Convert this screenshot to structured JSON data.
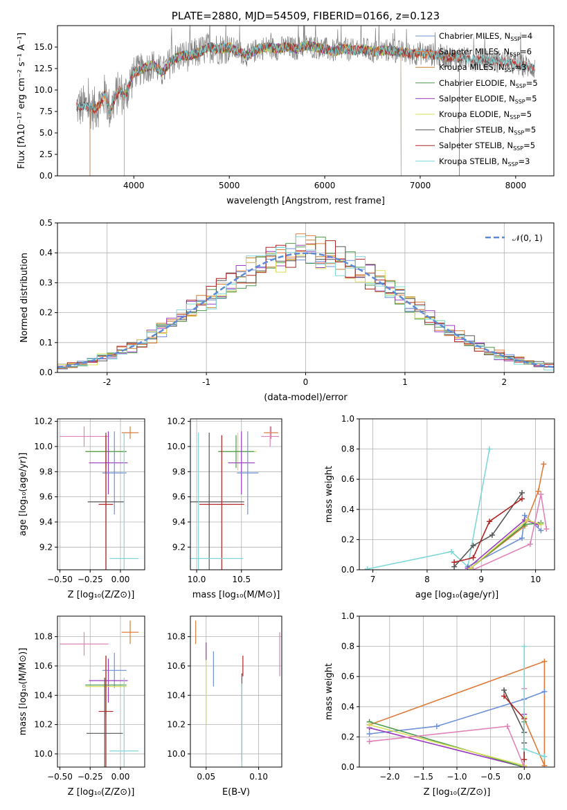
{
  "chart_data": [
    {
      "id": "p1",
      "type": "line",
      "title": "PLATE=2880, MJD=54509, FIBERID=0166, z=0.123",
      "xlabel": "wavelength [Angstrom, rest frame]",
      "ylabel": "Flux [fλ10⁻¹⁷ erg cm⁻² s⁻¹ A⁻¹]",
      "xlim": [
        3200,
        8400
      ],
      "ylim": [
        0,
        17.5
      ],
      "xticks": [
        4000,
        5000,
        6000,
        7000,
        8000
      ],
      "yticks": [
        0.0,
        2.5,
        5.0,
        7.5,
        10.0,
        12.5,
        15.0
      ],
      "legend_position": "upper-right",
      "spectrum": {
        "x": [
          3400,
          3500,
          3600,
          3650,
          3700,
          3750,
          3800,
          3850,
          3900,
          3950,
          4000,
          4100,
          4200,
          4300,
          4400,
          4500,
          4600,
          4700,
          4800,
          4900,
          5000,
          5100,
          5200,
          5300,
          5400,
          5500,
          5600,
          5700,
          5800,
          5900,
          6000,
          6100,
          6200,
          6300,
          6400,
          6500,
          6600,
          6700,
          6800,
          6900,
          7000,
          7100,
          7200,
          7300,
          7400,
          7500,
          7600,
          7700,
          7800,
          7900,
          8000,
          8100,
          8200
        ],
        "y": [
          8.0,
          8.1,
          7.8,
          8.5,
          9.5,
          7.5,
          9.0,
          10.0,
          9.2,
          10.5,
          12.0,
          12.5,
          13.0,
          12.0,
          13.5,
          14.0,
          14.0,
          14.5,
          15.0,
          14.8,
          15.0,
          14.5,
          14.0,
          14.8,
          15.0,
          14.8,
          15.0,
          14.8,
          15.2,
          15.0,
          14.8,
          14.5,
          14.8,
          14.6,
          14.8,
          14.4,
          14.6,
          14.6,
          14.4,
          14.2,
          14.3,
          14.2,
          14.0,
          13.8,
          13.8,
          13.6,
          13.5,
          13.6,
          13.4,
          13.2,
          13.0,
          12.8,
          12.6
        ]
      },
      "series": [
        {
          "name": "Chabrier MILES, N_SSP=4",
          "color": "#6c8fd8",
          "cut_low": 3540,
          "cut_high": 7410
        },
        {
          "name": "Salpeter MILES, N_SSP=6",
          "color": "#e07b39",
          "cut_low": 3540,
          "cut_high": 7410
        },
        {
          "name": "Kroupa MILES, N_SSP=3",
          "color": "#c87c2b",
          "cut_low": 3540,
          "cut_high": 7410
        },
        {
          "name": "Chabrier ELODIE, N_SSP=5",
          "color": "#4a9a4a",
          "cut_low": 3900,
          "cut_high": 6800
        },
        {
          "name": "Salpeter ELODIE, N_SSP=5",
          "color": "#9a3bbf",
          "cut_low": 3900,
          "cut_high": 6800
        },
        {
          "name": "Kroupa ELODIE, N_SSP=5",
          "color": "#d8dc5a",
          "cut_low": 3900,
          "cut_high": 6800
        },
        {
          "name": "Chabrier STELIB, N_SSP=5",
          "color": "#555555",
          "cut_low": 3400,
          "cut_high": 8200
        },
        {
          "name": "Salpeter STELIB, N_SSP=5",
          "color": "#b22222",
          "cut_low": 3400,
          "cut_high": 8200
        },
        {
          "name": "Kroupa STELIB, N_SSP=3",
          "color": "#7fd6d6",
          "cut_low": 3400,
          "cut_high": 8200
        }
      ],
      "legend": [
        {
          "label": "Chabrier MILES, N",
          "sub": "SSP",
          "tail": "=4",
          "color": "#6c8fd8"
        },
        {
          "label": "Salpeter MILES, N",
          "sub": "SSP",
          "tail": "=6",
          "color": "#e07b39"
        },
        {
          "label": "Kroupa MILES, N",
          "sub": "SSP",
          "tail": "=3",
          "color": "#c87c2b"
        },
        {
          "label": "Chabrier ELODIE, N",
          "sub": "SSP",
          "tail": "=5",
          "color": "#4a9a4a"
        },
        {
          "label": "Salpeter ELODIE, N",
          "sub": "SSP",
          "tail": "=5",
          "color": "#9a3bbf"
        },
        {
          "label": "Kroupa ELODIE, N",
          "sub": "SSP",
          "tail": "=5",
          "color": "#d8dc5a"
        },
        {
          "label": "Chabrier STELIB, N",
          "sub": "SSP",
          "tail": "=5",
          "color": "#555555"
        },
        {
          "label": "Salpeter STELIB, N",
          "sub": "SSP",
          "tail": "=5",
          "color": "#b22222"
        },
        {
          "label": "Kroupa STELIB, N",
          "sub": "SSP",
          "tail": "=3",
          "color": "#7fd6d6"
        }
      ]
    },
    {
      "id": "p2",
      "type": "histogram",
      "xlabel": "(data-model)/error",
      "ylabel": "Normed distribution",
      "xlim": [
        -2.5,
        2.5
      ],
      "ylim": [
        0,
        0.5
      ],
      "xticks": [
        -2,
        -1,
        0,
        1,
        2
      ],
      "yticks": [
        0.0,
        0.1,
        0.2,
        0.3,
        0.4,
        0.5
      ],
      "bin_width": 0.1,
      "legend": {
        "label": "𝒩(0, 1)",
        "color": "#5b8ad6",
        "position": "upper-right"
      },
      "curve": {
        "type": "gaussian",
        "mean": 0,
        "sigma": 1,
        "color": "#5b8ad6"
      },
      "series_colors": [
        "#6c8fd8",
        "#e07b39",
        "#c87c2b",
        "#4a9a4a",
        "#9a3bbf",
        "#d8dc5a",
        "#555555",
        "#b22222",
        "#7fd6d6"
      ]
    },
    {
      "id": "p3",
      "type": "errorbar",
      "xlabel": "Z [log₁₀(Z/Z⊙)]",
      "ylabel": "age  [log₁₀(age/yr)]",
      "xlim": [
        -0.52,
        0.2
      ],
      "ylim": [
        9.02,
        10.22
      ],
      "xticks": [
        -0.5,
        -0.25,
        0.0
      ],
      "xticklabels": [
        "−0.50",
        "−0.25",
        "0.00"
      ],
      "yticks": [
        9.2,
        9.4,
        9.6,
        9.8,
        10.0,
        10.2
      ],
      "points": [
        {
          "x": 0.08,
          "xerr": 0.07,
          "y": 10.11,
          "yerr": 0.05,
          "color": "#e07b39"
        },
        {
          "x": -0.3,
          "xerr": 0.2,
          "y": 10.08,
          "yerr": 0.08,
          "color": "#e082b8"
        },
        {
          "x": -0.12,
          "xerr": 0.17,
          "y": 9.96,
          "yerr": 0.15,
          "color": "#d8dc5a"
        },
        {
          "x": -0.12,
          "xerr": 0.17,
          "y": 9.96,
          "yerr": 0.13,
          "color": "#4a9a4a"
        },
        {
          "x": -0.1,
          "xerr": 0.16,
          "y": 9.87,
          "yerr": 0.25,
          "color": "#9a3bbf"
        },
        {
          "x": -0.05,
          "xerr": 0.1,
          "y": 9.79,
          "yerr": 0.33,
          "color": "#6c8fd8"
        },
        {
          "x": -0.12,
          "xerr": 0.15,
          "y": 9.56,
          "yerr": 0.55,
          "color": "#555555"
        },
        {
          "x": -0.12,
          "xerr": 0.06,
          "y": 9.54,
          "yerr": 0.55,
          "color": "#b22222"
        },
        {
          "x": 0.03,
          "xerr": 0.12,
          "y": 9.11,
          "yerr": 1.0,
          "color": "#7fd6d6"
        }
      ]
    },
    {
      "id": "p4",
      "type": "errorbar",
      "xlabel": "mass [log₁₀(M/M⊙)]",
      "ylabel": "",
      "xlim": [
        9.93,
        10.95
      ],
      "ylim": [
        9.02,
        10.22
      ],
      "xticks": [
        10.0,
        10.5
      ],
      "xticklabels": [
        "10.0",
        "10.5"
      ],
      "yticks": [
        9.2,
        9.4,
        9.6,
        9.8,
        10.0,
        10.2
      ],
      "points": [
        {
          "x": 10.83,
          "xerr": 0.08,
          "y": 10.11,
          "yerr": 0.05,
          "color": "#e07b39"
        },
        {
          "x": 10.82,
          "xerr": 0.1,
          "y": 10.08,
          "yerr": 0.08,
          "color": "#e082b8"
        },
        {
          "x": 10.46,
          "xerr": 0.21,
          "y": 9.96,
          "yerr": 0.15,
          "color": "#d8dc5a"
        },
        {
          "x": 10.44,
          "xerr": 0.2,
          "y": 9.96,
          "yerr": 0.13,
          "color": "#4a9a4a"
        },
        {
          "x": 10.5,
          "xerr": 0.15,
          "y": 9.87,
          "yerr": 0.25,
          "color": "#9a3bbf"
        },
        {
          "x": 10.57,
          "xerr": 0.12,
          "y": 9.79,
          "yerr": 0.33,
          "color": "#6c8fd8"
        },
        {
          "x": 10.14,
          "xerr": 0.39,
          "y": 9.56,
          "yerr": 0.55,
          "color": "#555555"
        },
        {
          "x": 10.28,
          "xerr": 0.25,
          "y": 9.54,
          "yerr": 0.55,
          "color": "#b22222"
        },
        {
          "x": 10.02,
          "xerr": 0.5,
          "y": 9.11,
          "yerr": 1.0,
          "color": "#7fd6d6"
        }
      ]
    },
    {
      "id": "p5",
      "type": "line",
      "xlabel": "age  [log₁₀(age/yr)]",
      "ylabel": "mass weight",
      "xlim": [
        6.75,
        10.35
      ],
      "ylim": [
        0,
        1.0
      ],
      "xticks": [
        7,
        8,
        9,
        10
      ],
      "yticks": [
        0.0,
        0.2,
        0.4,
        0.6,
        0.8,
        1.0
      ],
      "series": [
        {
          "color": "#7fd6d6",
          "x": [
            6.9,
            8.45,
            8.75,
            9.15
          ],
          "y": [
            0.005,
            0.12,
            0.02,
            0.8
          ]
        },
        {
          "color": "#555555",
          "x": [
            8.5,
            8.85,
            9.2,
            9.75
          ],
          "y": [
            0.02,
            0.16,
            0.23,
            0.51
          ]
        },
        {
          "color": "#b22222",
          "x": [
            8.5,
            8.85,
            9.15,
            9.75
          ],
          "y": [
            0.05,
            0.08,
            0.32,
            0.47
          ]
        },
        {
          "color": "#6c8fd8",
          "x": [
            8.75,
            9.75,
            9.8,
            10.1
          ],
          "y": [
            0.02,
            0.21,
            0.36,
            0.26
          ]
        },
        {
          "color": "#e07b39",
          "x": [
            8.8,
            9.8,
            10.05,
            10.15
          ],
          "y": [
            0.01,
            0.29,
            0.52,
            0.7
          ]
        },
        {
          "color": "#9a3bbf",
          "x": [
            8.75,
            9.8,
            10.05
          ],
          "y": [
            0.01,
            0.33,
            0.3
          ]
        },
        {
          "color": "#4a9a4a",
          "x": [
            8.8,
            9.8,
            10.1
          ],
          "y": [
            0.01,
            0.3,
            0.31
          ]
        },
        {
          "color": "#d8dc5a",
          "x": [
            8.8,
            9.85,
            10.1
          ],
          "y": [
            0.01,
            0.33,
            0.3
          ]
        },
        {
          "color": "#e082b8",
          "x": [
            8.85,
            9.9,
            10.1,
            10.2
          ],
          "y": [
            0.0,
            0.17,
            0.5,
            0.27
          ]
        }
      ]
    },
    {
      "id": "p6",
      "type": "errorbar",
      "xlabel": "Z [log₁₀(Z/Z⊙)]",
      "ylabel": "mass [log₁₀(M/M⊙)]",
      "xlim": [
        -0.52,
        0.2
      ],
      "ylim": [
        9.91,
        10.94
      ],
      "xticks": [
        -0.5,
        -0.25,
        0.0
      ],
      "xticklabels": [
        "−0.50",
        "−0.25",
        "0.00"
      ],
      "yticks": [
        10.0,
        10.2,
        10.4,
        10.6,
        10.8
      ],
      "points": [
        {
          "x": 0.08,
          "xerr": 0.07,
          "y": 10.83,
          "yerr": 0.08,
          "color": "#e07b39"
        },
        {
          "x": -0.3,
          "xerr": 0.2,
          "y": 10.75,
          "yerr": 0.08,
          "color": "#e082b8"
        },
        {
          "x": -0.05,
          "xerr": 0.1,
          "y": 10.57,
          "yerr": 0.12,
          "color": "#6c8fd8"
        },
        {
          "x": -0.1,
          "xerr": 0.16,
          "y": 10.5,
          "yerr": 0.15,
          "color": "#9a3bbf"
        },
        {
          "x": -0.12,
          "xerr": 0.17,
          "y": 10.46,
          "yerr": 0.21,
          "color": "#d8dc5a"
        },
        {
          "x": -0.12,
          "xerr": 0.17,
          "y": 10.47,
          "yerr": 0.2,
          "color": "#4a9a4a"
        },
        {
          "x": -0.12,
          "xerr": 0.06,
          "y": 10.29,
          "yerr": 0.38,
          "color": "#b22222"
        },
        {
          "x": -0.13,
          "xerr": 0.15,
          "y": 10.14,
          "yerr": 0.38,
          "color": "#555555"
        },
        {
          "x": 0.03,
          "xerr": 0.12,
          "y": 10.02,
          "yerr": 0.5,
          "color": "#7fd6d6"
        }
      ]
    },
    {
      "id": "p7",
      "type": "errorbar",
      "xlabel": "E(B-V)",
      "ylabel": "",
      "xlim": [
        0.035,
        0.122
      ],
      "ylim": [
        9.91,
        10.94
      ],
      "xticks": [
        0.05,
        0.1
      ],
      "xticklabels": [
        "0.05",
        "0.10"
      ],
      "yticks": [
        10.0,
        10.2,
        10.4,
        10.6,
        10.8
      ],
      "points": [
        {
          "x": 0.04,
          "xerr": 0,
          "y": 10.83,
          "yerr": 0.08,
          "color": "#e07b39"
        },
        {
          "x": 0.05,
          "xerr": 0,
          "y": 10.7,
          "yerr": 0.06,
          "color": "#9a3bbf"
        },
        {
          "x": 0.057,
          "xerr": 0,
          "y": 10.58,
          "yerr": 0.12,
          "color": "#6c8fd8"
        },
        {
          "x": 0.05,
          "xerr": 0,
          "y": 10.42,
          "yerr": 0.22,
          "color": "#d8dc5a"
        },
        {
          "x": 0.085,
          "xerr": 0,
          "y": 10.6,
          "yerr": 0.07,
          "color": "#b22222"
        },
        {
          "x": 0.084,
          "xerr": 0,
          "y": 10.25,
          "yerr": 0.3,
          "color": "#555555"
        },
        {
          "x": 0.084,
          "xerr": 0,
          "y": 10.1,
          "yerr": 0.38,
          "color": "#7fd6d6"
        },
        {
          "x": 0.12,
          "xerr": 0,
          "y": 10.68,
          "yerr": 0.15,
          "color": "#e082b8"
        }
      ]
    },
    {
      "id": "p8",
      "type": "line",
      "xlabel": "Z [log₁₀(Z/Z⊙)]",
      "ylabel": "mass weight",
      "xlim": [
        -2.45,
        0.45
      ],
      "ylim": [
        0,
        1.0
      ],
      "xticks": [
        -2.0,
        -1.5,
        -1.0,
        -0.5,
        0.0
      ],
      "xticklabels": [
        "−2.0",
        "−1.5",
        "−1.0",
        "−0.5",
        "0.0"
      ],
      "yticks": [
        0.0,
        0.2,
        0.4,
        0.6,
        0.8,
        1.0
      ],
      "series": [
        {
          "color": "#e07b39",
          "x": [
            -2.3,
            0.3,
            0.3,
            0.0,
            0.0
          ],
          "y": [
            0.28,
            0.7,
            0.01,
            0.32,
            0.0
          ]
        },
        {
          "color": "#6c8fd8",
          "x": [
            -2.3,
            -1.3,
            0.0,
            0.3
          ],
          "y": [
            0.22,
            0.27,
            0.45,
            0.5
          ]
        },
        {
          "color": "#9a3bbf",
          "x": [
            -2.3,
            0.0,
            0.0
          ],
          "y": [
            0.26,
            0.0,
            0.35
          ]
        },
        {
          "color": "#4a9a4a",
          "x": [
            -2.3,
            0.0,
            0.0
          ],
          "y": [
            0.3,
            0.0,
            0.3
          ]
        },
        {
          "color": "#d8dc5a",
          "x": [
            -2.3,
            0.0,
            0.0
          ],
          "y": [
            0.28,
            0.01,
            0.33
          ]
        },
        {
          "color": "#e082b8",
          "x": [
            -2.3,
            -0.25,
            0.0,
            0.0
          ],
          "y": [
            0.17,
            0.27,
            0.0,
            0.52
          ]
        },
        {
          "color": "#555555",
          "x": [
            -0.3,
            0.0,
            0.0
          ],
          "y": [
            0.51,
            0.23,
            0.16
          ]
        },
        {
          "color": "#b22222",
          "x": [
            -0.3,
            0.0,
            0.0
          ],
          "y": [
            0.47,
            0.32,
            0.05
          ]
        },
        {
          "color": "#7fd6d6",
          "x": [
            0.0,
            0.0,
            0.3
          ],
          "y": [
            0.8,
            0.12,
            0.07
          ]
        }
      ]
    }
  ]
}
